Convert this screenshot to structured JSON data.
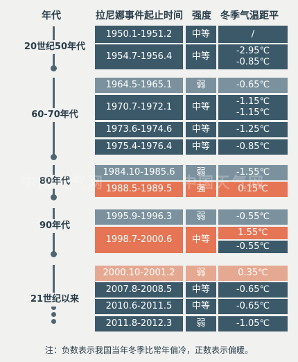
{
  "headers": {
    "era": "年代",
    "period": "拉尼娜事件起止时间",
    "intensity": "强度",
    "anomaly": "冬季气温距平"
  },
  "decades": [
    "20世纪50年代",
    "60-70年代",
    "80年代",
    "90年代",
    "21世纪以来"
  ],
  "rows": [
    {
      "period": "1950.1-1951.2",
      "intensity": "中等",
      "anomaly": [
        "/"
      ]
    },
    {
      "period": "1954.7-1956.4",
      "intensity": "中等",
      "anomaly": [
        "-2.95℃",
        "-0.85℃"
      ]
    },
    {
      "period": "1964.5-1965.1",
      "intensity": "弱",
      "anomaly": [
        "-0.65℃"
      ]
    },
    {
      "period": "1970.7-1972.1",
      "intensity": "中等",
      "anomaly": [
        "-1.15℃",
        "-1.15℃"
      ]
    },
    {
      "period": "1973.6-1974.6",
      "intensity": "中等",
      "anomaly": [
        "-1.25℃"
      ]
    },
    {
      "period": "1975.4-1976.4",
      "intensity": "中等",
      "anomaly": [
        "-0.85℃"
      ]
    },
    {
      "period": "1984.10-1985.6",
      "intensity": "弱",
      "anomaly": [
        "-1.55℃"
      ]
    },
    {
      "period": "1988.5-1989.5",
      "intensity": "强",
      "anomaly": [
        "0.15℃"
      ]
    },
    {
      "period": "1995.9-1996.3",
      "intensity": "弱",
      "anomaly": [
        "-0.55℃"
      ]
    },
    {
      "period": "1998.7-2000.6",
      "intensity": "中等",
      "anomaly": [
        "1.55℃",
        "-0.55℃"
      ]
    },
    {
      "period": "2000.10-2001.2",
      "intensity": "弱",
      "anomaly": [
        "0.35℃"
      ]
    },
    {
      "period": "2007.8-2008.5",
      "intensity": "中等",
      "anomaly": [
        "-0.65℃"
      ]
    },
    {
      "period": "2010.6-2011.5",
      "intensity": "中等",
      "anomaly": [
        "-0.65℃"
      ]
    },
    {
      "period": "2011.8-2012.3",
      "intensity": "弱",
      "anomaly": [
        "-1.05℃"
      ]
    }
  ],
  "watermark": "中国天气网",
  "note": "注：负数表示我国当年冬季比常年偏冷，正数表示偏暖。",
  "colors": {
    "dark": "#3c5969",
    "light": "#7b929e",
    "red": "#e57554",
    "pink": "#e5a891",
    "background": "#f1f1ef"
  }
}
